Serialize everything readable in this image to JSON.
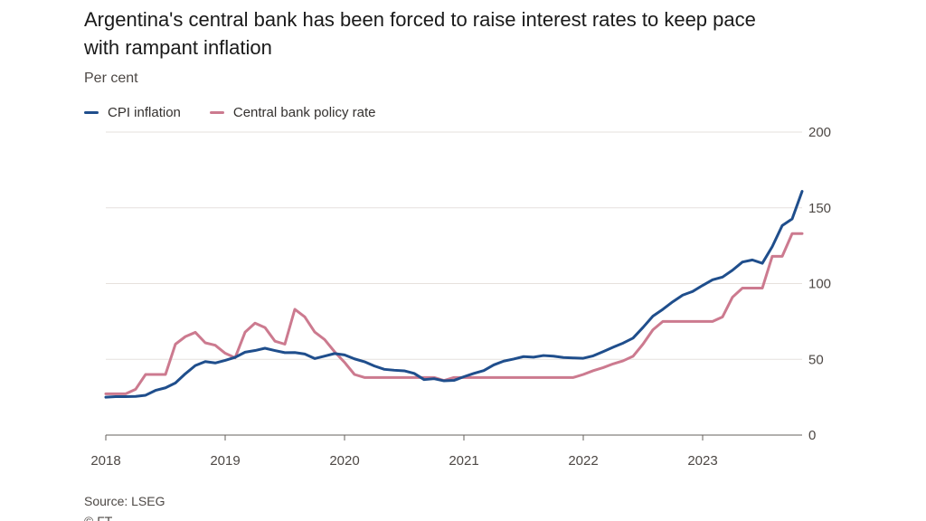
{
  "title": "Argentina's central bank has been forced to raise interest rates to keep pace with rampant inflation",
  "subtitle": "Per cent",
  "source": "Source: LSEG",
  "copyright": "© FT",
  "chart_data": {
    "type": "line",
    "title": "Argentina's central bank has been forced to raise interest rates to keep pace with rampant inflation",
    "ylabel": "Per cent",
    "xlabel": "",
    "ylim": [
      0,
      200
    ],
    "y_ticks": [
      0,
      50,
      100,
      150,
      200
    ],
    "x_ticks": [
      "2018",
      "2019",
      "2020",
      "2021",
      "2022",
      "2023"
    ],
    "grid": "horizontal",
    "y_axis_side": "right",
    "legend_position": "top-left",
    "x_range": [
      "2018-01",
      "2023-11"
    ],
    "x": [
      "2018-01",
      "2018-02",
      "2018-03",
      "2018-04",
      "2018-05",
      "2018-06",
      "2018-07",
      "2018-08",
      "2018-09",
      "2018-10",
      "2018-11",
      "2018-12",
      "2019-01",
      "2019-02",
      "2019-03",
      "2019-04",
      "2019-05",
      "2019-06",
      "2019-07",
      "2019-08",
      "2019-09",
      "2019-10",
      "2019-11",
      "2019-12",
      "2020-01",
      "2020-02",
      "2020-03",
      "2020-04",
      "2020-05",
      "2020-06",
      "2020-07",
      "2020-08",
      "2020-09",
      "2020-10",
      "2020-11",
      "2020-12",
      "2021-01",
      "2021-02",
      "2021-03",
      "2021-04",
      "2021-05",
      "2021-06",
      "2021-07",
      "2021-08",
      "2021-09",
      "2021-10",
      "2021-11",
      "2021-12",
      "2022-01",
      "2022-02",
      "2022-03",
      "2022-04",
      "2022-05",
      "2022-06",
      "2022-07",
      "2022-08",
      "2022-09",
      "2022-10",
      "2022-11",
      "2022-12",
      "2023-01",
      "2023-02",
      "2023-03",
      "2023-04",
      "2023-05",
      "2023-06",
      "2023-07",
      "2023-08",
      "2023-09",
      "2023-10",
      "2023-11"
    ],
    "series": [
      {
        "name": "CPI inflation",
        "color": "#1f4e8c",
        "values": [
          25.0,
          25.4,
          25.4,
          25.5,
          26.3,
          29.5,
          31.2,
          34.4,
          40.5,
          45.9,
          48.5,
          47.6,
          49.3,
          51.3,
          54.7,
          55.8,
          57.3,
          55.8,
          54.4,
          54.5,
          53.5,
          50.5,
          52.1,
          53.8,
          52.9,
          50.3,
          48.4,
          45.6,
          43.4,
          42.8,
          42.4,
          40.7,
          36.6,
          37.2,
          35.8,
          36.1,
          38.5,
          40.7,
          42.6,
          46.3,
          48.8,
          50.2,
          51.8,
          51.4,
          52.5,
          52.1,
          51.2,
          50.9,
          50.7,
          52.3,
          55.1,
          58.0,
          60.7,
          64.0,
          71.0,
          78.5,
          83.0,
          88.0,
          92.4,
          94.8,
          98.8,
          102.5,
          104.3,
          108.8,
          114.2,
          115.6,
          113.4,
          124.4,
          138.3,
          142.7,
          160.9
        ]
      },
      {
        "name": "Central bank policy rate",
        "color": "#cc7a8f",
        "values": [
          27.25,
          27.25,
          27.25,
          30.25,
          40.0,
          40.0,
          40.0,
          60.0,
          65.0,
          67.8,
          60.9,
          59.3,
          54.0,
          51.0,
          67.9,
          73.9,
          71.0,
          62.0,
          60.0,
          83.0,
          78.0,
          68.0,
          63.0,
          55.0,
          48.0,
          40.0,
          38.0,
          38.0,
          38.0,
          38.0,
          38.0,
          38.0,
          38.0,
          38.0,
          36.0,
          38.0,
          38.0,
          38.0,
          38.0,
          38.0,
          38.0,
          38.0,
          38.0,
          38.0,
          38.0,
          38.0,
          38.0,
          38.0,
          40.0,
          42.5,
          44.5,
          47.0,
          49.0,
          52.0,
          60.0,
          69.5,
          75.0,
          75.0,
          75.0,
          75.0,
          75.0,
          75.0,
          78.0,
          91.0,
          97.0,
          97.0,
          97.0,
          118.0,
          118.0,
          133.0,
          133.0
        ]
      }
    ]
  }
}
